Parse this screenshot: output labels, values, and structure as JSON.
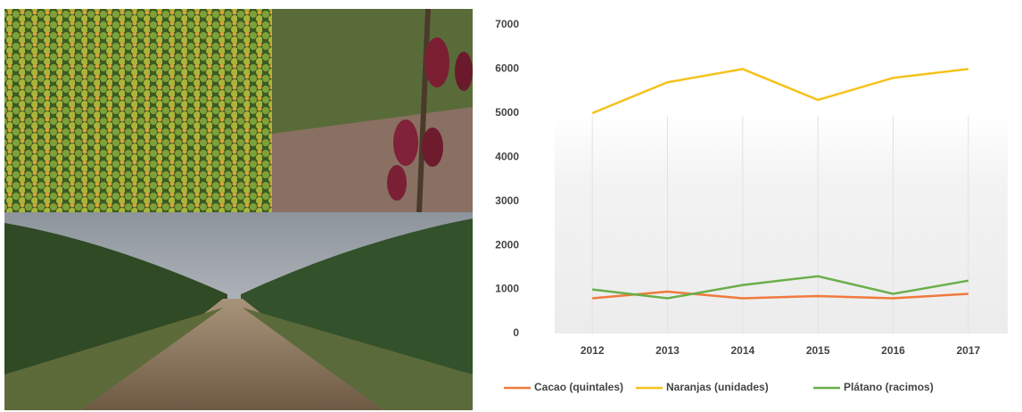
{
  "chart_data": {
    "type": "line",
    "categories": [
      "2012",
      "2013",
      "2014",
      "2015",
      "2016",
      "2017"
    ],
    "series": [
      {
        "name": "Cacao (quintales)",
        "color": "#f07a3c",
        "values": [
          800,
          950,
          800,
          850,
          800,
          900
        ]
      },
      {
        "name": "Naranjas (unidades)",
        "color": "#f5c21b",
        "values": [
          5000,
          5700,
          6000,
          5300,
          5800,
          6000
        ]
      },
      {
        "name": "Plátano (racimos)",
        "color": "#6aaf4a",
        "values": [
          1000,
          800,
          1100,
          1300,
          900,
          1200
        ]
      }
    ],
    "ylim": [
      0,
      7000
    ],
    "yticks": [
      0,
      1000,
      2000,
      3000,
      4000,
      5000,
      6000,
      7000
    ],
    "grid": true,
    "legend": "bottom"
  }
}
